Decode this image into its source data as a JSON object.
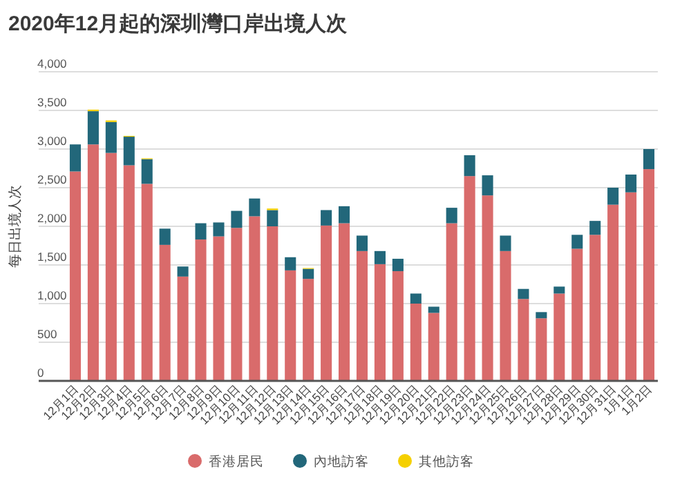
{
  "chart_data": {
    "type": "bar",
    "title": "2020年12月起的深圳灣口岸出境人次",
    "ylabel": "每日出境人次",
    "stacked": true,
    "categories": [
      "12月1日",
      "12月2日",
      "12月3日",
      "12月4日",
      "12月5日",
      "12月6日",
      "12月7日",
      "12月8日",
      "12月9日",
      "12月10日",
      "12月11日",
      "12月12日",
      "12月13日",
      "12月14日",
      "12月15日",
      "12月16日",
      "12月17日",
      "12月18日",
      "12月19日",
      "12月20日",
      "12月21日",
      "12月22日",
      "12月23日",
      "12月24日",
      "12月25日",
      "12月26日",
      "12月27日",
      "12月28日",
      "12月29日",
      "12月30日",
      "12月31日",
      "1月1日",
      "1月2日"
    ],
    "series": [
      {
        "name": "香港居民",
        "color": "#d96b6b",
        "values": [
          2710,
          3060,
          2950,
          2790,
          2550,
          1760,
          1350,
          1830,
          1870,
          1980,
          2130,
          2000,
          1430,
          1320,
          2010,
          2040,
          1680,
          1510,
          1420,
          1000,
          880,
          2040,
          2650,
          2400,
          1680,
          1060,
          810,
          1130,
          1710,
          1890,
          2280,
          2440,
          2740
        ]
      },
      {
        "name": "內地訪客",
        "color": "#22677a",
        "values": [
          350,
          430,
          400,
          370,
          320,
          210,
          130,
          210,
          180,
          220,
          230,
          210,
          170,
          130,
          200,
          220,
          200,
          170,
          160,
          130,
          80,
          200,
          270,
          260,
          200,
          130,
          80,
          90,
          180,
          180,
          220,
          230,
          260
        ]
      },
      {
        "name": "其他訪客",
        "color": "#f5d000",
        "values": [
          0,
          20,
          20,
          10,
          10,
          0,
          0,
          0,
          0,
          0,
          0,
          20,
          0,
          10,
          0,
          0,
          0,
          0,
          0,
          0,
          0,
          0,
          0,
          0,
          0,
          0,
          0,
          0,
          0,
          0,
          0,
          0,
          0
        ]
      }
    ],
    "ylim": [
      0,
      4000
    ],
    "yticks": [
      {
        "value": 0,
        "label": "0"
      },
      {
        "value": 500,
        "label": "500"
      },
      {
        "value": 1000,
        "label": "1,000"
      },
      {
        "value": 1500,
        "label": "1,500"
      },
      {
        "value": 2000,
        "label": "2,000"
      },
      {
        "value": 2500,
        "label": "2,500"
      },
      {
        "value": 3000,
        "label": "3,000"
      },
      {
        "value": 3500,
        "label": "3,500"
      },
      {
        "value": 4000,
        "label": "4,000"
      }
    ],
    "grid": "y",
    "legend": "bottom"
  }
}
